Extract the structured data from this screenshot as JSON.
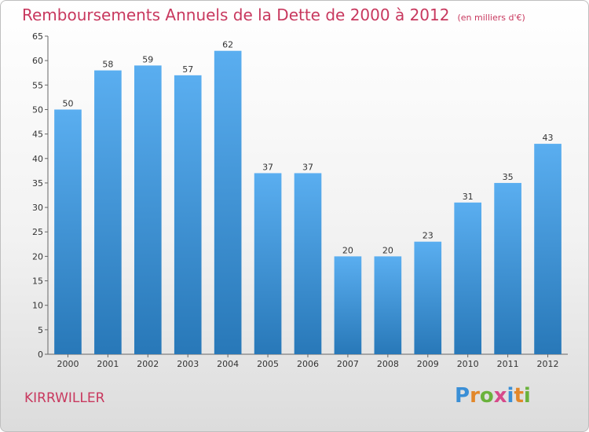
{
  "title": "Remboursements Annuels de la Dette de 2000 à 2012",
  "unit": "(en milliers d'€)",
  "commune": "KIRRWILLER",
  "logo": {
    "letters": [
      "P",
      "r",
      "o",
      "x",
      "i",
      "t",
      "i"
    ],
    "colors": [
      "#3a8fd6",
      "#e2872a",
      "#6ab23c",
      "#d64a8a",
      "#3a8fd6",
      "#e2872a",
      "#6ab23c"
    ]
  },
  "chart_data": {
    "type": "bar",
    "categories": [
      "2000",
      "2001",
      "2002",
      "2003",
      "2004",
      "2005",
      "2006",
      "2007",
      "2008",
      "2009",
      "2010",
      "2011",
      "2012"
    ],
    "values": [
      50,
      58,
      59,
      57,
      62,
      37,
      37,
      20,
      20,
      23,
      31,
      35,
      43
    ],
    "ylim": [
      0,
      65
    ],
    "yticks": [
      0,
      5,
      10,
      15,
      20,
      25,
      30,
      35,
      40,
      45,
      50,
      55,
      60,
      65
    ],
    "grid": false,
    "bar_color_top": "#5aaef0",
    "bar_color_bottom": "#2878b8"
  }
}
